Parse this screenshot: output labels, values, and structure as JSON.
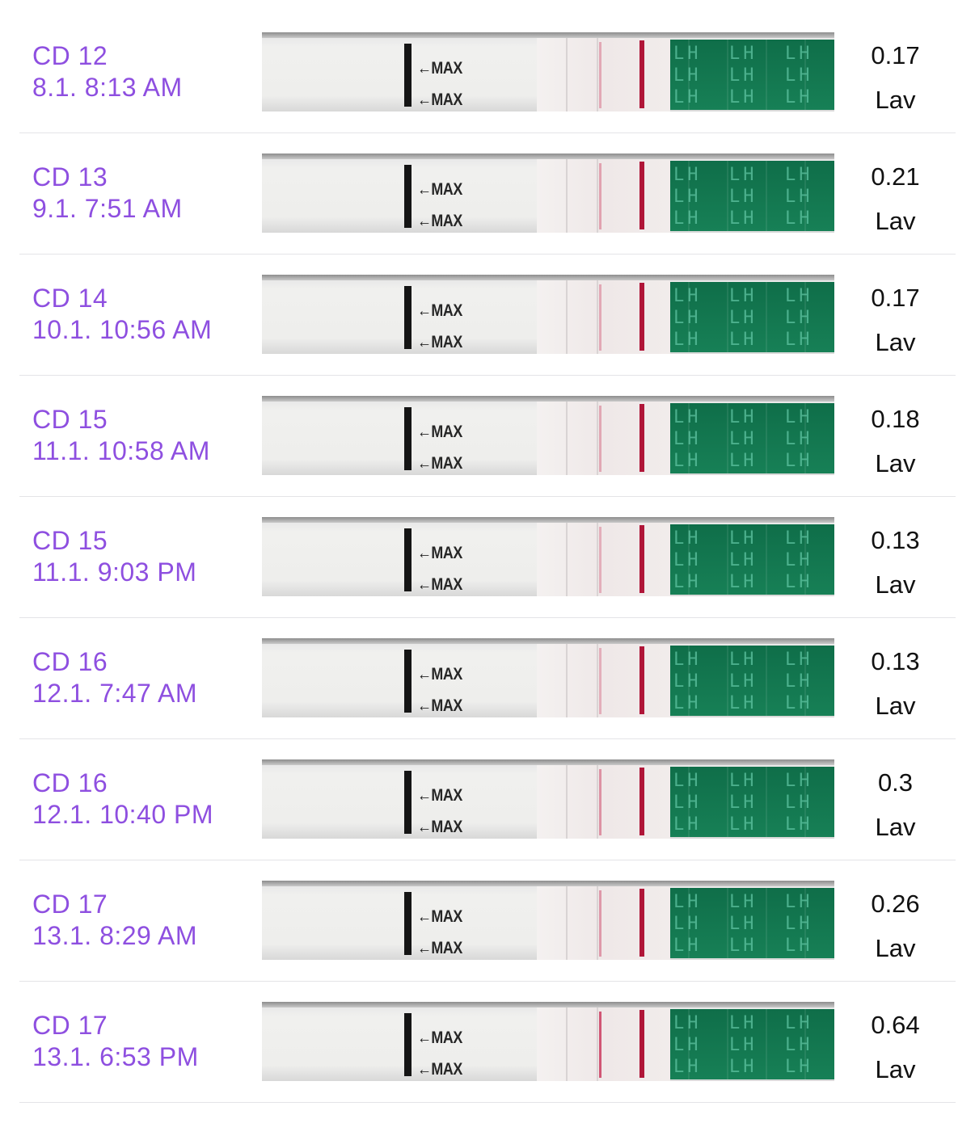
{
  "colors": {
    "accent": "#8e4fe0",
    "test_line": "#b01538",
    "lh_band": "#137a52"
  },
  "strip_labels": {
    "max": "←MAX",
    "lh": "LH"
  },
  "entries": [
    {
      "cycle_day": "CD 12",
      "datetime": "8.1. 8:13 AM",
      "value": "0.17",
      "result": "Lav",
      "test_line_strength": 0.17
    },
    {
      "cycle_day": "CD 13",
      "datetime": "9.1. 7:51 AM",
      "value": "0.21",
      "result": "Lav",
      "test_line_strength": 0.21
    },
    {
      "cycle_day": "CD 14",
      "datetime": "10.1. 10:56 AM",
      "value": "0.17",
      "result": "Lav",
      "test_line_strength": 0.17
    },
    {
      "cycle_day": "CD 15",
      "datetime": "11.1. 10:58 AM",
      "value": "0.18",
      "result": "Lav",
      "test_line_strength": 0.18
    },
    {
      "cycle_day": "CD 15",
      "datetime": "11.1. 9:03 PM",
      "value": "0.13",
      "result": "Lav",
      "test_line_strength": 0.13
    },
    {
      "cycle_day": "CD 16",
      "datetime": "12.1. 7:47 AM",
      "value": "0.13",
      "result": "Lav",
      "test_line_strength": 0.13
    },
    {
      "cycle_day": "CD 16",
      "datetime": "12.1. 10:40 PM",
      "value": "0.3",
      "result": "Lav",
      "test_line_strength": 0.3
    },
    {
      "cycle_day": "CD 17",
      "datetime": "13.1. 8:29 AM",
      "value": "0.26",
      "result": "Lav",
      "test_line_strength": 0.26
    },
    {
      "cycle_day": "CD 17",
      "datetime": "13.1. 6:53 PM",
      "value": "0.64",
      "result": "Lav",
      "test_line_strength": 0.64
    }
  ]
}
